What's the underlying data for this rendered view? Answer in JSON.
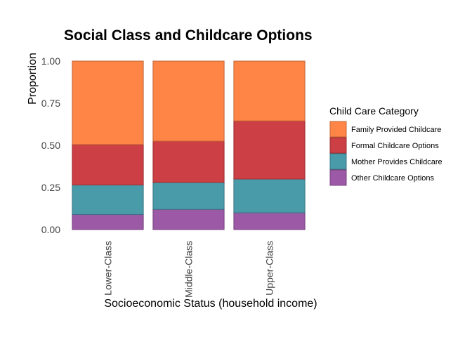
{
  "chart_data": {
    "type": "bar",
    "stacked": true,
    "title": "Social Class and Childcare Options",
    "xlabel": "Socioeconomic Status (household income)",
    "ylabel": "Proportion",
    "ylim": [
      0,
      1
    ],
    "yticks": [
      "0.00",
      "0.25",
      "0.50",
      "0.75",
      "1.00"
    ],
    "categories": [
      "Lower-Class",
      "Middle-Class",
      "Upper-Class"
    ],
    "legend": {
      "title": "Child Care Category",
      "position": "right"
    },
    "grid": false,
    "series": [
      {
        "name": "Other Childcare Options",
        "color": "#9B59A6",
        "values": [
          0.09,
          0.12,
          0.1
        ]
      },
      {
        "name": "Mother Provides Childcare",
        "color": "#4A9BAA",
        "values": [
          0.175,
          0.16,
          0.2
        ]
      },
      {
        "name": "Formal Childcare Options",
        "color": "#CC3F44",
        "values": [
          0.24,
          0.245,
          0.345
        ]
      },
      {
        "name": "Family Provided Childcare",
        "color": "#FF8547",
        "values": [
          0.495,
          0.475,
          0.355
        ]
      }
    ],
    "legend_order": [
      "Family Provided Childcare",
      "Formal Childcare Options",
      "Mother Provides Childcare",
      "Other Childcare Options"
    ]
  }
}
